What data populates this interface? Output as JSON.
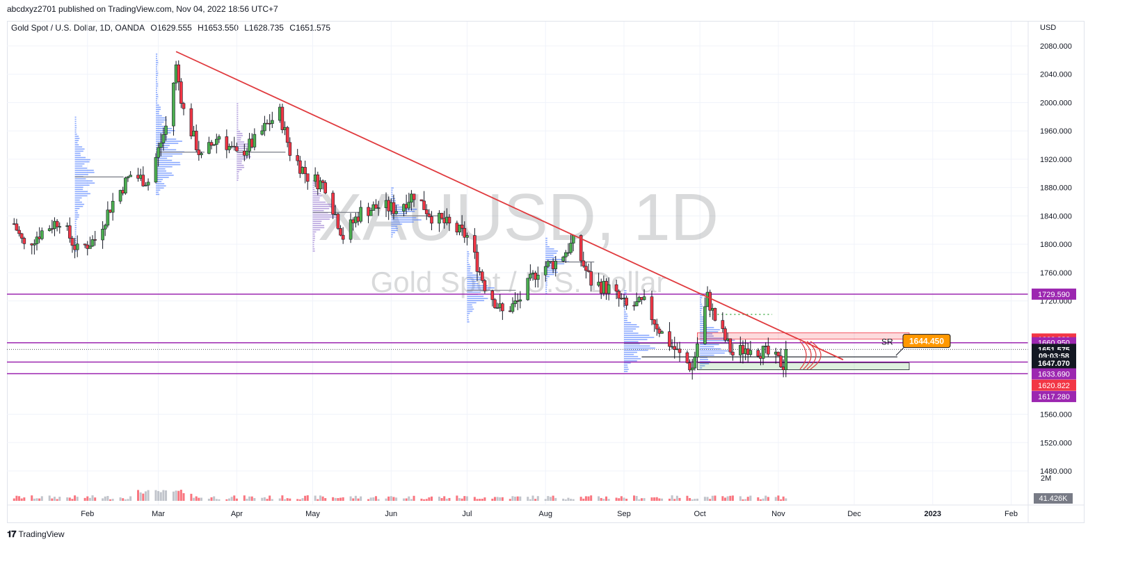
{
  "publisher": "abcdxyz2701 published on TradingView.com, Nov 04, 2022 18:56 UTC+7",
  "header": {
    "symbol": "Gold Spot / U.S. Dollar, 1D, OANDA",
    "open": "O1629.555",
    "high": "H1653.550",
    "low": "L1628.735",
    "close": "C1651.575"
  },
  "watermark": {
    "ticker": "XAUUSD, 1D",
    "name": "Gold Spot / U.S. Dollar"
  },
  "footer": {
    "brand": "TradingView",
    "logo": "tv-logo-icon"
  },
  "colors": {
    "up": "#4caf50",
    "down": "#f23645",
    "trend": "#e03a3e",
    "level": "#9c27b0",
    "profile_blue": "#2962ff",
    "profile_purple": "#7e57c2",
    "price_tag_bg": "#131722",
    "label_orange": "#ff9800"
  },
  "chart_data": {
    "type": "candlestick",
    "currency": "USD",
    "y_range": [
      1460,
      2100
    ],
    "y_ticks": [
      "2080.000",
      "2040.000",
      "2000.000",
      "1960.000",
      "1920.000",
      "1880.000",
      "1840.000",
      "1800.000",
      "1760.000",
      "1720.000",
      "1560.000",
      "1520.000",
      "1480.000"
    ],
    "x_ticks": [
      "Feb",
      "Mar",
      "Apr",
      "May",
      "Jun",
      "Jul",
      "Aug",
      "Sep",
      "Oct",
      "Nov",
      "Dec",
      "2023",
      "Feb"
    ],
    "level_tags": [
      {
        "label": "1729.590",
        "color": "#9c27b0",
        "y": 1729.59
      },
      {
        "label": "1666.226",
        "color": "#f23645",
        "y": 1666.226
      },
      {
        "label": "1660.950",
        "color": "#9c27b0",
        "y": 1660.95
      },
      {
        "label": "1651.575",
        "color": "#131722",
        "y": 1651.575
      },
      {
        "label": "09:03:58",
        "color": "#131722",
        "y": 1642.5
      },
      {
        "label": "1647.070",
        "color": "#131722",
        "y": 1632.0
      },
      {
        "label": "1633.690",
        "color": "#9c27b0",
        "y": 1617.0
      },
      {
        "label": "1620.822",
        "color": "#f23645",
        "y": 1601.0
      },
      {
        "label": "1617.280",
        "color": "#9c27b0",
        "y": 1585.0
      }
    ],
    "horizontal_levels": [
      1729.59,
      1660.95,
      1633.69,
      1617.28
    ],
    "current_price": 1651.575,
    "annotations": {
      "sr_label": "SR",
      "target_label": "1644.450"
    },
    "volume": {
      "label": "2M",
      "last_value": "41.426K"
    },
    "series": [
      {
        "name": "XAUUSD",
        "ohlc_anchor_points": [
          [
            "2022-01-03",
            1829
          ],
          [
            "2022-01-07",
            1797
          ],
          [
            "2022-01-14",
            1818
          ],
          [
            "2022-01-21",
            1835
          ],
          [
            "2022-01-28",
            1791
          ],
          [
            "2022-02-04",
            1807
          ],
          [
            "2022-02-11",
            1860
          ],
          [
            "2022-02-18",
            1898
          ],
          [
            "2022-02-25",
            1889
          ],
          [
            "2022-03-04",
            1966
          ],
          [
            "2022-03-08",
            2050
          ],
          [
            "2022-03-11",
            1988
          ],
          [
            "2022-03-18",
            1921
          ],
          [
            "2022-03-25",
            1954
          ],
          [
            "2022-04-01",
            1925
          ],
          [
            "2022-04-08",
            1945
          ],
          [
            "2022-04-14",
            1973
          ],
          [
            "2022-04-18",
            1985
          ],
          [
            "2022-04-22",
            1931
          ],
          [
            "2022-04-29",
            1896
          ],
          [
            "2022-05-06",
            1883
          ],
          [
            "2022-05-13",
            1811
          ],
          [
            "2022-05-20",
            1846
          ],
          [
            "2022-05-27",
            1853
          ],
          [
            "2022-06-03",
            1850
          ],
          [
            "2022-06-10",
            1871
          ],
          [
            "2022-06-17",
            1840
          ],
          [
            "2022-06-24",
            1826
          ],
          [
            "2022-07-01",
            1811
          ],
          [
            "2022-07-08",
            1742
          ],
          [
            "2022-07-15",
            1703
          ],
          [
            "2022-07-21",
            1718
          ],
          [
            "2022-07-29",
            1765
          ],
          [
            "2022-08-05",
            1775
          ],
          [
            "2022-08-12",
            1802
          ],
          [
            "2022-08-19",
            1747
          ],
          [
            "2022-08-26",
            1737
          ],
          [
            "2022-09-02",
            1711
          ],
          [
            "2022-09-09",
            1716
          ],
          [
            "2022-09-16",
            1674
          ],
          [
            "2022-09-23",
            1643
          ],
          [
            "2022-09-28",
            1625
          ],
          [
            "2022-09-30",
            1660
          ],
          [
            "2022-10-04",
            1725
          ],
          [
            "2022-10-07",
            1694
          ],
          [
            "2022-10-14",
            1644
          ],
          [
            "2022-10-21",
            1657
          ],
          [
            "2022-10-28",
            1644
          ],
          [
            "2022-11-03",
            1630
          ],
          [
            "2022-11-04",
            1651.575
          ]
        ]
      }
    ]
  }
}
